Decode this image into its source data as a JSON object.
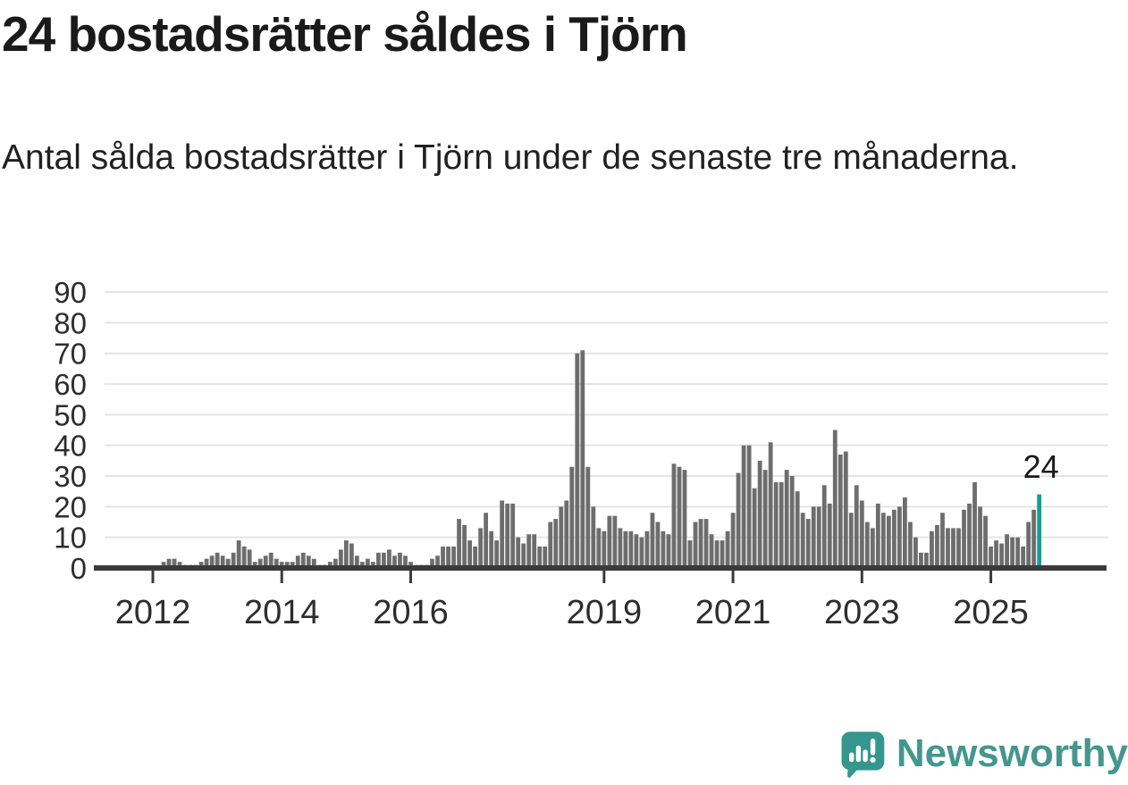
{
  "header": {
    "title": "24 bostadsrätter såldes i Tjörn",
    "subtitle": "Antal sålda bostadsrätter i Tjörn under de senaste tre månaderna."
  },
  "annotation": {
    "last_value_label": "24"
  },
  "branding": {
    "name": "Newsworthy",
    "icon": "bar-chart-speech-bubble-icon",
    "icon_color": "#35968e",
    "text_color": "#45968e"
  },
  "chart_data": {
    "type": "bar",
    "title": "24 bostadsrätter såldes i Tjörn",
    "subtitle": "Antal sålda bostadsrätter i Tjörn under de senaste tre månaderna.",
    "frequency": "monthly",
    "start": "2012-01",
    "end": "2025-10",
    "ylim": [
      0,
      90
    ],
    "yticks": [
      0,
      10,
      20,
      30,
      40,
      50,
      60,
      70,
      80,
      90
    ],
    "xtick_years": [
      2012,
      2014,
      2016,
      2019,
      2021,
      2023,
      2025
    ],
    "grid": true,
    "legend_position": "none",
    "bar_color": "#6d6d6d",
    "highlight_color": "#179e8e",
    "axis_color": "#3a3a3a",
    "grid_color": "#e4e4e4",
    "tick_label_color": "#2d2d2d",
    "annotation_color": "#1a1a1a",
    "highlight_last": true,
    "last_value": 24,
    "values": [
      0,
      0,
      2,
      3,
      3,
      2,
      1,
      1,
      1,
      2,
      3,
      4,
      5,
      4,
      3,
      5,
      9,
      7,
      6,
      2,
      3,
      4,
      5,
      3,
      2,
      2,
      2,
      4,
      5,
      4,
      3,
      1,
      1,
      2,
      3,
      6,
      9,
      8,
      4,
      2,
      3,
      2,
      5,
      5,
      6,
      4,
      5,
      4,
      2,
      1,
      1,
      1,
      3,
      4,
      7,
      7,
      7,
      16,
      14,
      9,
      7,
      13,
      18,
      12,
      9,
      22,
      21,
      21,
      10,
      8,
      11,
      11,
      7,
      7,
      15,
      16,
      20,
      22,
      33,
      70,
      71,
      33,
      20,
      13,
      12,
      17,
      17,
      13,
      12,
      12,
      11,
      10,
      12,
      18,
      15,
      12,
      11,
      34,
      33,
      32,
      9,
      15,
      16,
      16,
      11,
      9,
      9,
      12,
      18,
      31,
      40,
      40,
      26,
      35,
      32,
      41,
      28,
      28,
      32,
      30,
      25,
      18,
      16,
      20,
      20,
      27,
      21,
      45,
      37,
      38,
      18,
      27,
      22,
      15,
      13,
      21,
      18,
      17,
      19,
      20,
      23,
      15,
      10,
      5,
      5,
      12,
      14,
      18,
      13,
      13,
      13,
      19,
      21,
      28,
      20,
      17,
      7,
      9,
      8,
      11,
      10,
      10,
      7,
      15,
      19,
      24
    ]
  }
}
